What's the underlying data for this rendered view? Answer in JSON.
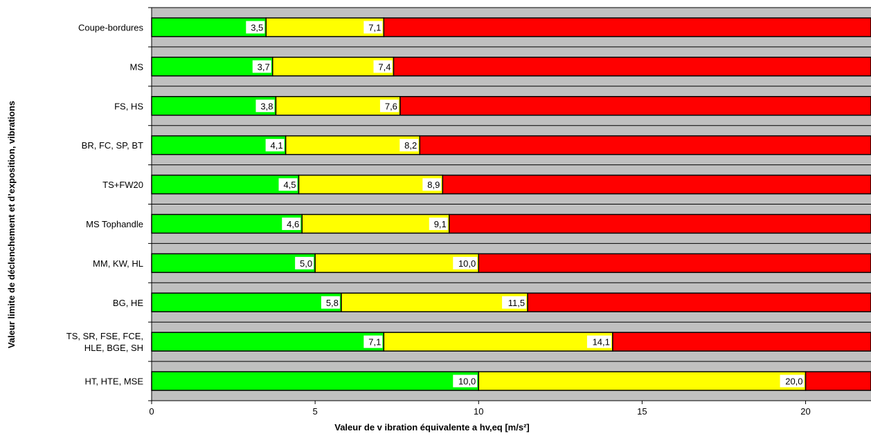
{
  "chart_data": {
    "type": "bar",
    "orientation": "horizontal",
    "stacked": true,
    "ylabel": "Valeur limite de déclenchement et d’exposition, vibrations",
    "xlabel": "Valeur de v ibration équivalente a  hv,eq [m/s²]",
    "xlim": [
      0,
      22
    ],
    "x_ticks": [
      "0",
      "5",
      "10",
      "15",
      "20"
    ],
    "grid": true,
    "legend": "none",
    "categories": [
      {
        "label_lines": [
          "Coupe-bordures"
        ],
        "green_end": 3.5,
        "yellow_end": 7.1,
        "green_label": "3,5",
        "yellow_label": "7,1"
      },
      {
        "label_lines": [
          "MS"
        ],
        "green_end": 3.7,
        "yellow_end": 7.4,
        "green_label": "3,7",
        "yellow_label": "7,4"
      },
      {
        "label_lines": [
          "FS, HS"
        ],
        "green_end": 3.8,
        "yellow_end": 7.6,
        "green_label": "3,8",
        "yellow_label": "7,6"
      },
      {
        "label_lines": [
          "BR, FC, SP, BT"
        ],
        "green_end": 4.1,
        "yellow_end": 8.2,
        "green_label": "4,1",
        "yellow_label": "8,2"
      },
      {
        "label_lines": [
          "TS+FW20"
        ],
        "green_end": 4.5,
        "yellow_end": 8.9,
        "green_label": "4,5",
        "yellow_label": "8,9"
      },
      {
        "label_lines": [
          "MS Tophandle"
        ],
        "green_end": 4.6,
        "yellow_end": 9.1,
        "green_label": "4,6",
        "yellow_label": "9,1"
      },
      {
        "label_lines": [
          "MM, KW, HL"
        ],
        "green_end": 5.0,
        "yellow_end": 10.0,
        "green_label": "5,0",
        "yellow_label": "10,0"
      },
      {
        "label_lines": [
          "BG, HE"
        ],
        "green_end": 5.8,
        "yellow_end": 11.5,
        "green_label": "5,8",
        "yellow_label": "11,5"
      },
      {
        "label_lines": [
          "TS, SR, FSE, FCE,",
          "HLE, BGE, SH"
        ],
        "green_end": 7.1,
        "yellow_end": 14.1,
        "green_label": "7,1",
        "yellow_label": "14,1"
      },
      {
        "label_lines": [
          "HT, HTE, MSE"
        ],
        "green_end": 10.0,
        "yellow_end": 20.0,
        "green_label": "10,0",
        "yellow_label": "20,0"
      }
    ],
    "colors": {
      "green": "#00ff00",
      "yellow": "#ffff00",
      "red": "#ff0000",
      "plot_bg": "#c0c0c0",
      "grid": "#000000"
    }
  }
}
